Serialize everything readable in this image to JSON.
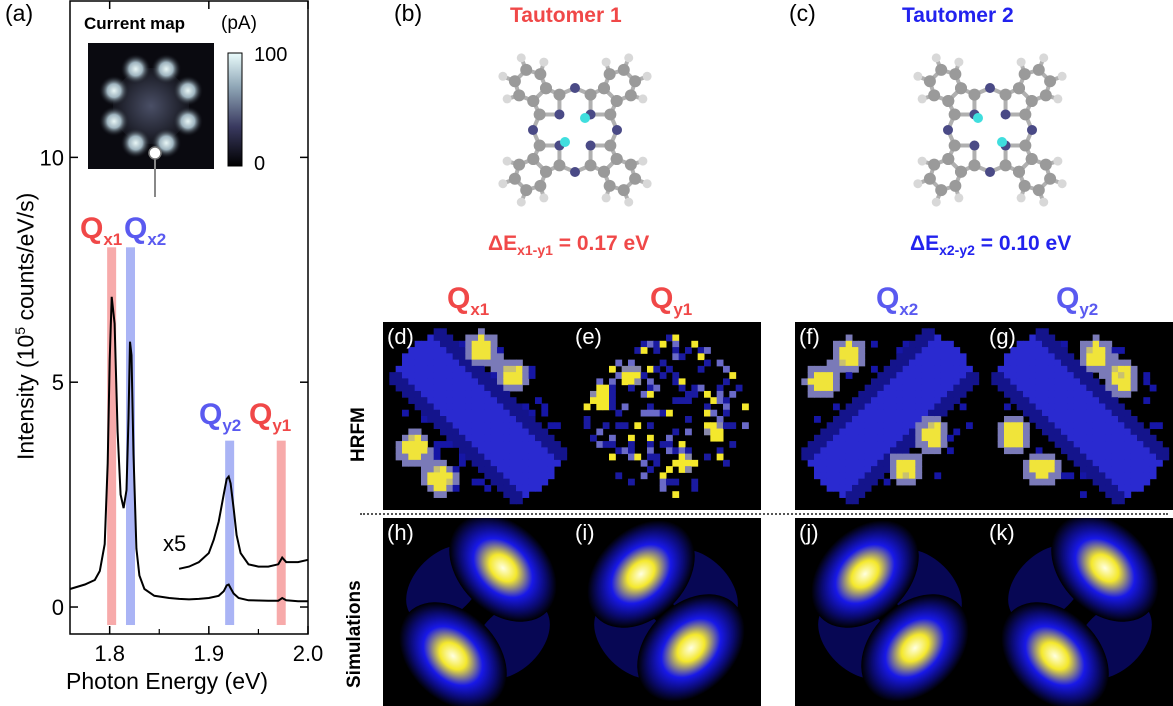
{
  "panel_letters": {
    "a": "(a)",
    "b": "(b)",
    "c": "(c)",
    "d": "(d)",
    "e": "(e)",
    "f": "(f)",
    "g": "(g)",
    "h": "(h)",
    "i": "(i)",
    "j": "(j)",
    "k": "(k)"
  },
  "spectrum": {
    "xlabel": "Photon Energy (eV)",
    "ylabel": "Intensity (10",
    "ylabel_sup": "5",
    "ylabel_rest": " counts/eV/s)",
    "x_ticks": [
      "1.8",
      "1.9",
      "2.0"
    ],
    "y_ticks": [
      "0",
      "5",
      "10"
    ],
    "x5_label": "x5",
    "peak_labels": [
      {
        "main": "Q",
        "sub": "x1",
        "color": "#f04848"
      },
      {
        "main": "Q",
        "sub": "x2",
        "color": "#5a5af0"
      },
      {
        "main": "Q",
        "sub": "y2",
        "color": "#5a5af0"
      },
      {
        "main": "Q",
        "sub": "y1",
        "color": "#f04848"
      }
    ],
    "inset": {
      "title": "Current map",
      "unit": "(pA)",
      "scale_max": "100",
      "scale_min": "0"
    }
  },
  "chart_data": {
    "type": "line",
    "xlabel": "Photon Energy (eV)",
    "ylabel": "Intensity (10^5 counts/eV/s)",
    "xlim": [
      1.76,
      2.0
    ],
    "ylim": [
      -0.6,
      13.5
    ],
    "series": [
      {
        "x": [
          1.76,
          1.775,
          1.785,
          1.79,
          1.795,
          1.798,
          1.8,
          1.802,
          1.805,
          1.808,
          1.811,
          1.814,
          1.817,
          1.819,
          1.8205,
          1.822,
          1.824,
          1.827,
          1.83,
          1.835,
          1.845,
          1.86,
          1.87,
          1.88,
          1.89,
          1.9,
          1.91,
          1.915,
          1.918,
          1.92,
          1.922,
          1.925,
          1.93,
          1.94,
          1.96,
          1.97,
          1.974,
          1.978,
          1.99,
          2.0
        ],
        "y": [
          0.4,
          0.5,
          0.6,
          0.8,
          1.4,
          3.2,
          5.5,
          6.9,
          6.3,
          3.9,
          2.5,
          2.2,
          2.6,
          4.2,
          5.9,
          5.6,
          3.4,
          1.3,
          0.7,
          0.4,
          0.25,
          0.2,
          0.18,
          0.17,
          0.18,
          0.2,
          0.25,
          0.35,
          0.48,
          0.5,
          0.42,
          0.3,
          0.2,
          0.15,
          0.14,
          0.14,
          0.2,
          0.15,
          0.13,
          0.13
        ]
      },
      {
        "x": [
          1.87,
          1.88,
          1.89,
          1.9,
          1.905,
          1.91,
          1.915,
          1.918,
          1.92,
          1.922,
          1.925,
          1.928,
          1.932,
          1.94,
          1.95,
          1.96,
          1.97,
          1.974,
          1.978,
          1.99,
          2.0
        ],
        "y": [
          0.85,
          0.9,
          1.0,
          1.2,
          1.5,
          1.9,
          2.5,
          2.85,
          2.9,
          2.75,
          2.2,
          1.6,
          1.2,
          0.95,
          0.9,
          0.9,
          0.95,
          1.1,
          1.0,
          1.0,
          1.05
        ]
      }
    ],
    "highlight_bands": [
      {
        "x": 1.802,
        "color": "#f7aaaa"
      },
      {
        "x": 1.821,
        "color": "#aab4f5"
      },
      {
        "x": 1.921,
        "color": "#aab4f5"
      },
      {
        "x": 1.973,
        "color": "#f7aaaa"
      }
    ]
  },
  "tautomers": {
    "t1": {
      "title": "Tautomer 1",
      "energy_main": "ΔE",
      "energy_sub": "x1-y1",
      "energy_value": " = 0.17 eV",
      "color": "#f04848"
    },
    "t2": {
      "title": "Tautomer 2",
      "energy_main": "ΔE",
      "energy_sub": "x2-y2",
      "energy_value": " = 0.10 eV",
      "color": "#2222ee"
    }
  },
  "column_labels": [
    {
      "main": "Q",
      "sub": "x1",
      "color": "#f04848"
    },
    {
      "main": "Q",
      "sub": "y1",
      "color": "#f04848"
    },
    {
      "main": "Q",
      "sub": "x2",
      "color": "#5a5af0"
    },
    {
      "main": "Q",
      "sub": "y2",
      "color": "#5a5af0"
    }
  ],
  "row_labels": {
    "hrfm": "HRFM",
    "sim": "Simulations"
  }
}
